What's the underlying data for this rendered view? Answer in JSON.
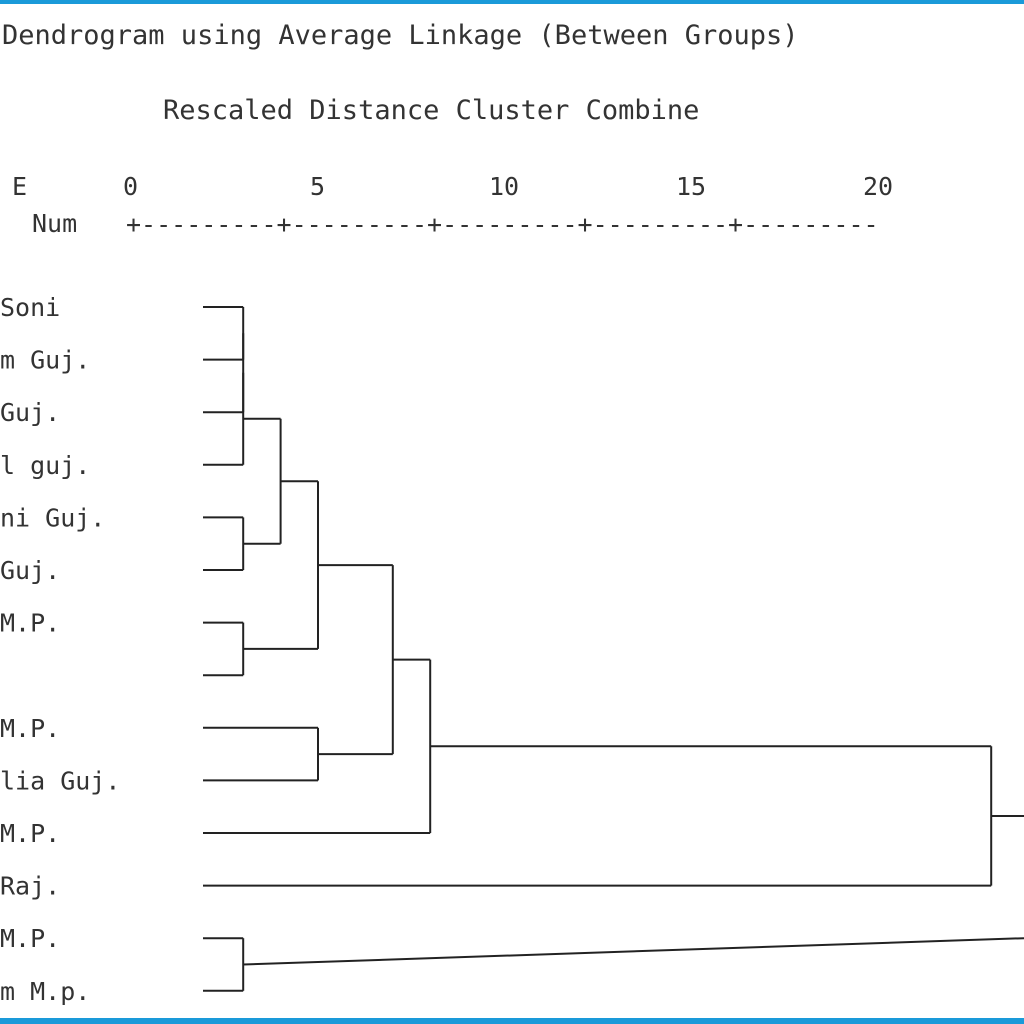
{
  "title": "Dendrogram using Average Linkage (Between Groups)",
  "subtitle": "Rescaled Distance Cluster Combine",
  "header_col1": "E",
  "header_col2": "Num",
  "scale_ticks": [
    "0",
    "5",
    "10",
    "15",
    "20"
  ],
  "scale_rule": "+---------+---------+---------+---------+---------",
  "leaves": [
    "Soni",
    "m Guj.",
    "Guj.",
    "l guj.",
    "ni Guj.",
    "Guj.",
    "M.P.",
    "",
    "M.P.",
    "lia Guj.",
    "M.P.",
    "Raj.",
    "M.P.",
    "m M.p."
  ],
  "merges": [
    {
      "a": "L0",
      "b": "L1",
      "h": 3
    },
    {
      "a": "M0",
      "b": "L2",
      "h": 3
    },
    {
      "a": "M1",
      "b": "L3",
      "h": 3
    },
    {
      "a": "L4",
      "b": "L5",
      "h": 3
    },
    {
      "a": "M2",
      "b": "M3",
      "h": 4
    },
    {
      "a": "L6",
      "b": "L7",
      "h": 3
    },
    {
      "a": "M4",
      "b": "M5",
      "h": 5
    },
    {
      "a": "L8",
      "b": "L9",
      "h": 5
    },
    {
      "a": "M6",
      "b": "M7",
      "h": 7
    },
    {
      "a": "M8",
      "b": "L10",
      "h": 8
    },
    {
      "a": "M9",
      "b": "L11",
      "h": 23
    },
    {
      "a": "L12",
      "b": "L13",
      "h": 3
    }
  ],
  "line_color": "#222222",
  "frame_color": "#1a9ad9"
}
